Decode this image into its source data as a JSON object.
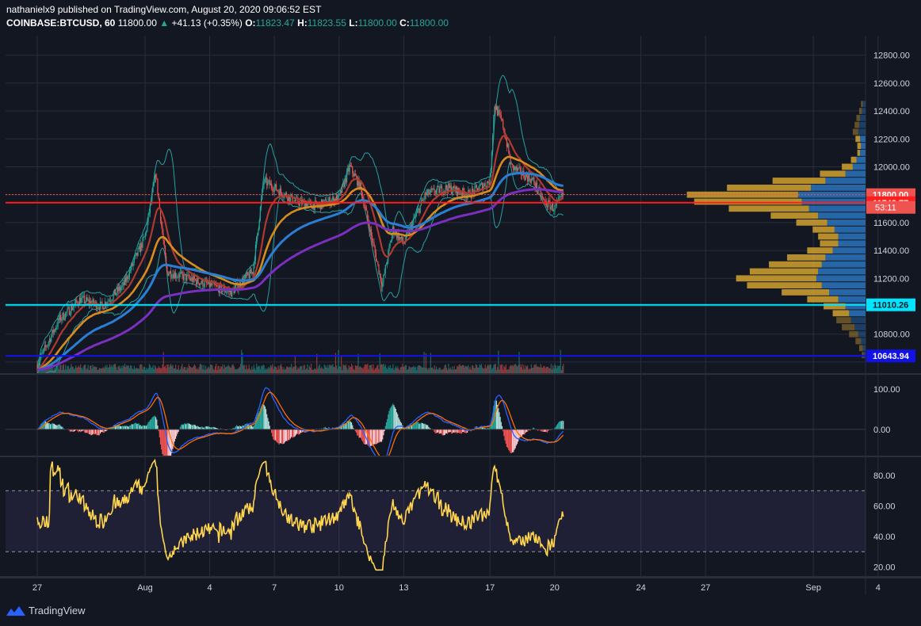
{
  "header": {
    "line1": "nathanielx9 published on TradingView.com, August 20, 2020 09:06:52 EST",
    "symbol": "COINBASE:BTCUSD, 60",
    "last": "11800.00",
    "change": "+41.13 (+0.35%)",
    "o_label": "O:",
    "o": "11823.47",
    "h_label": "H:",
    "h": "11823.55",
    "l_label": "L:",
    "l": "11800.00",
    "c_label": "C:",
    "c": "11800.00",
    "up_arrow": "▲"
  },
  "brand": {
    "name": "TradingView",
    "icon": "tradingview-logo-icon"
  },
  "colors": {
    "background": "#131722",
    "grid": "#2a2e39",
    "up": "#26a69a",
    "down": "#ef5350",
    "bb": "#26a0a0",
    "ma_red": "#b03a2e",
    "ma_orange": "#d98c1c",
    "ma_blue": "#2a7fd4",
    "ma_purple": "#7b2fbf",
    "rsi": "#ffd54f",
    "level_red": "#ff1e1e",
    "level_cyan": "#00e5ff",
    "level_blue": "#1212e6",
    "vp_orange": "#c99a2e",
    "vp_blue": "#2a6fb5"
  },
  "chart_data": [
    {
      "type": "line",
      "name": "price",
      "y_ticks": [
        "12800.00",
        "12600.00",
        "12400.00",
        "12200.00",
        "12000.00",
        "11800.00",
        "11600.00",
        "11400.00",
        "11200.00",
        "11000.00",
        "10800.00",
        "10600.00"
      ],
      "ylim": [
        10520,
        12940
      ],
      "x_ticks": [
        "27",
        "Aug",
        "4",
        "7",
        "10",
        "13",
        "17",
        "20",
        "24",
        "27",
        "Sep",
        "4"
      ],
      "x_tick_days": [
        0,
        5,
        8,
        11,
        14,
        17,
        21,
        24,
        28,
        31,
        36,
        39
      ],
      "close_keyframes": {
        "x": [
          0,
          1,
          2,
          3,
          4,
          5,
          5.5,
          6,
          7,
          8,
          9,
          10,
          10.5,
          11,
          12,
          13,
          14,
          14.5,
          15,
          16,
          16.5,
          17,
          18,
          19,
          20,
          21,
          21.2,
          21.6,
          22,
          22.5,
          23,
          23.5,
          24,
          24.4
        ],
        "y": [
          10580,
          10900,
          11050,
          11000,
          11150,
          11500,
          11950,
          11250,
          11200,
          11150,
          11100,
          11250,
          11900,
          11850,
          11750,
          11720,
          11780,
          12000,
          11850,
          11150,
          11550,
          11450,
          11800,
          11850,
          11800,
          11900,
          12450,
          12300,
          12000,
          11950,
          11900,
          11750,
          11700,
          11800
        ]
      },
      "levels": [
        {
          "price": 11800.0,
          "label": "11800.00",
          "color": "#ef5350",
          "style": "dotted"
        },
        {
          "price": 11742.77,
          "label": "11742.77",
          "color": "#ff1e1e",
          "style": "solid"
        },
        {
          "price": 11010.26,
          "label": "11010.26",
          "color": "#00e5ff",
          "style": "solid"
        },
        {
          "price": 10643.94,
          "label": "10643.94",
          "color": "#1212e6",
          "style": "solid"
        }
      ],
      "countdown": "53:11",
      "moving_averages": [
        "red",
        "orange",
        "blue",
        "purple"
      ],
      "bollinger_bands": true
    },
    {
      "type": "line",
      "name": "macd",
      "y_ticks": [
        "100.00",
        "0.00"
      ],
      "ylim": [
        -65,
        135
      ]
    },
    {
      "type": "line",
      "name": "rsi",
      "y_ticks": [
        "80.00",
        "60.00",
        "40.00",
        "20.00"
      ],
      "ylim": [
        14,
        92
      ],
      "band": [
        30,
        70
      ]
    },
    {
      "type": "bar",
      "name": "volume_profile",
      "price_ranges": [
        12450,
        12400,
        12350,
        12300,
        12250,
        12200,
        12150,
        12100,
        12050,
        12000,
        11950,
        11900,
        11850,
        11800,
        11750,
        11700,
        11650,
        11600,
        11550,
        11500,
        11450,
        11400,
        11350,
        11300,
        11250,
        11200,
        11150,
        11100,
        11050,
        11000,
        10950,
        10900,
        10850,
        10800,
        10750,
        10700,
        10650
      ],
      "orange": [
        2,
        3,
        4,
        5,
        6,
        5,
        4,
        3,
        6,
        12,
        28,
        58,
        92,
        122,
        118,
        88,
        52,
        34,
        24,
        22,
        20,
        28,
        42,
        58,
        75,
        88,
        82,
        52,
        34,
        24,
        18,
        16,
        14,
        10,
        6,
        4,
        2
      ],
      "blue": [
        3,
        4,
        6,
        7,
        8,
        6,
        5,
        6,
        10,
        14,
        22,
        44,
        60,
        74,
        70,
        62,
        52,
        42,
        34,
        30,
        30,
        36,
        44,
        48,
        52,
        54,
        48,
        40,
        30,
        22,
        18,
        16,
        12,
        8,
        5,
        3,
        2
      ]
    }
  ]
}
